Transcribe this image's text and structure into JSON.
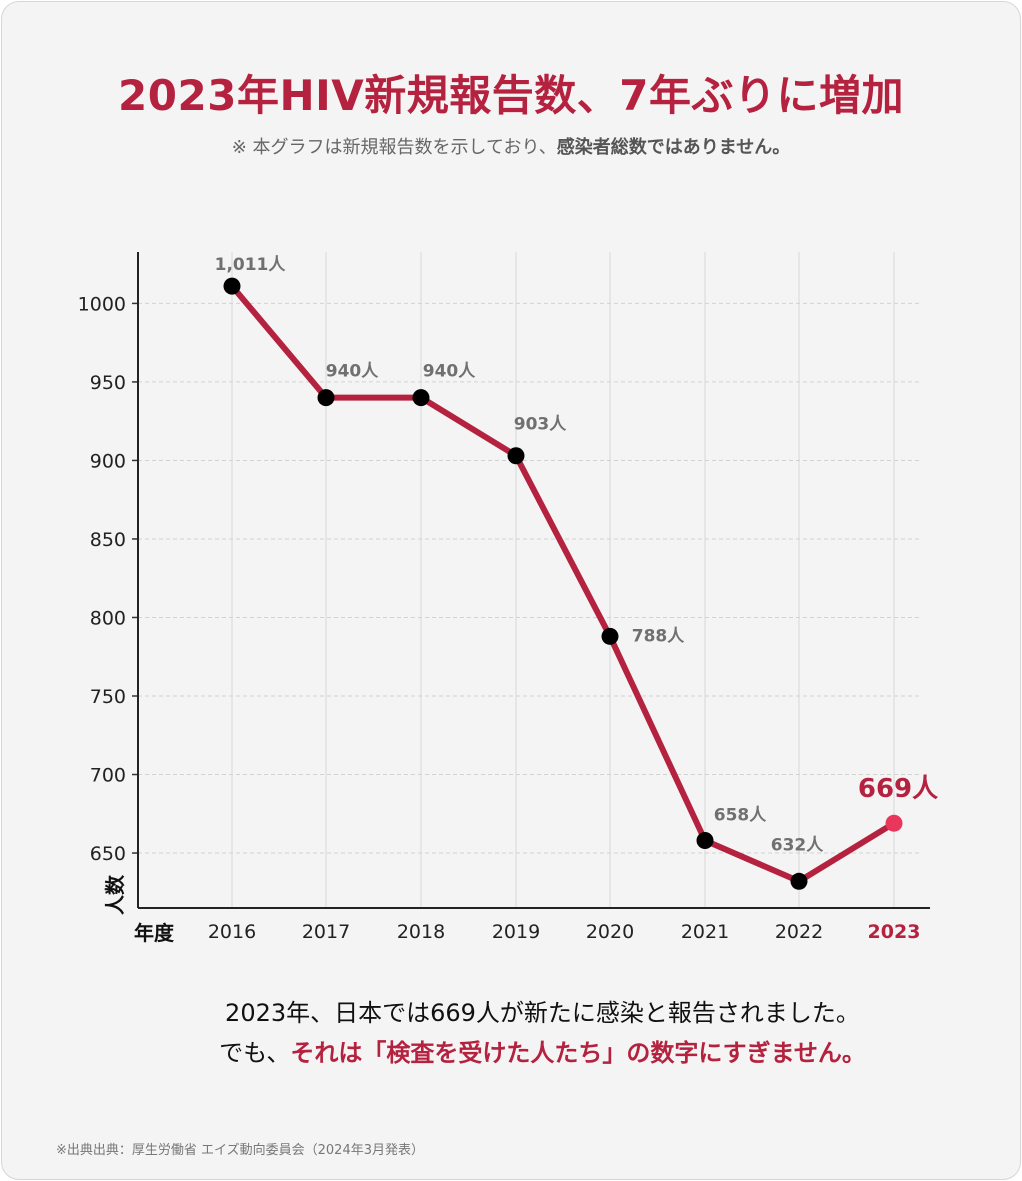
{
  "header": {
    "title": "2023年HIV新規報告数、7年ぶりに増加",
    "subtitle_prefix": "※ 本グラフは新規報告数を示しており、",
    "subtitle_bold": "感染者総数ではありません。"
  },
  "chart_data": {
    "type": "line",
    "title": "2023年HIV新規報告数、7年ぶりに増加",
    "xlabel": "年度",
    "ylabel": "人数",
    "categories": [
      "2016",
      "2017",
      "2018",
      "2019",
      "2020",
      "2021",
      "2022",
      "2023"
    ],
    "values": [
      1011,
      940,
      940,
      903,
      788,
      658,
      632,
      669
    ],
    "data_labels": [
      "1,011人",
      "940人",
      "940人",
      "903人",
      "788人",
      "658人",
      "632人",
      "669人"
    ],
    "y_ticks": [
      650,
      700,
      750,
      800,
      850,
      900,
      950,
      1000
    ],
    "ylim": [
      615,
      1030
    ],
    "grid": true,
    "highlight_category": "2023",
    "colors": {
      "line": "#b4223f",
      "point": "#000000",
      "highlight_point": "#e8365d",
      "highlight_text": "#b4223f",
      "data_label": "#707070"
    }
  },
  "caption": {
    "line1": "2023年、日本では669人が新たに感染と報告されました。",
    "line2_prefix": "でも、",
    "line2_highlight": "それは「検査を受けた人たち」の数字にすぎません。"
  },
  "source": "※出典出典：厚生労働省 エイズ動向委員会（2024年3月発表）"
}
